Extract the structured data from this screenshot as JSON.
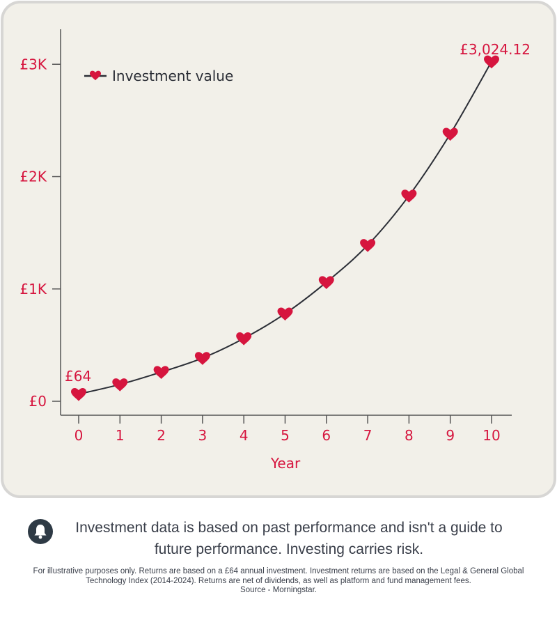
{
  "chart_data": {
    "type": "line",
    "xlabel": "Year",
    "ylabel": "",
    "x": [
      0,
      1,
      2,
      3,
      4,
      5,
      6,
      7,
      8,
      9,
      10
    ],
    "series": [
      {
        "name": "Investment value",
        "values": [
          64,
          150,
          260,
          385,
          560,
          780,
          1060,
          1390,
          1830,
          2380,
          3024.12
        ],
        "color": "#d6153e",
        "marker": "heart-icon"
      }
    ],
    "ylim": [
      0,
      3200
    ],
    "xlim": [
      0,
      10
    ],
    "yticks": [
      0,
      1000,
      2000,
      3000
    ],
    "ytick_labels": [
      "£0",
      "£1K",
      "£2K",
      "£3K"
    ],
    "xtick_labels": [
      "0",
      "1",
      "2",
      "3",
      "4",
      "5",
      "6",
      "7",
      "8",
      "9",
      "10"
    ],
    "annotations": {
      "start": "£64",
      "end": "£3,024.12"
    },
    "legend": {
      "label": "Investment value",
      "position": "top-left"
    },
    "grid": false,
    "colors": {
      "accent": "#d6153e",
      "line": "#2b2e36",
      "axis": "#555555",
      "background": "#f2f0e9"
    }
  },
  "disclaimer": {
    "icon": "bell-icon",
    "text": "Investment data is based on past performance and isn't a guide to future performance. Investing carries risk."
  },
  "footnote": {
    "line1": "For illustrative purposes only. Returns are based on a £64 annual investment. Investment returns are based on the Legal & General Global Technology Index (2014-2024). Returns are net of dividends, as well as platform and fund management fees.",
    "line2": "Source - Morningstar."
  }
}
